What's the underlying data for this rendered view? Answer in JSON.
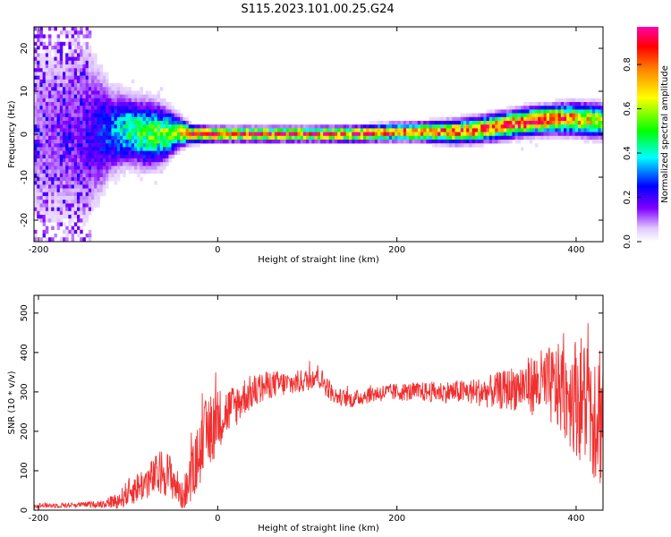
{
  "title": "S115.2023.101.00.25.G24",
  "chart_data": [
    {
      "type": "heatmap",
      "xlabel": "Height of straight line (km)",
      "ylabel": "Frequency (Hz)",
      "xlim": [
        -205,
        430
      ],
      "ylim": [
        -25,
        25
      ],
      "xticks": [
        -200,
        0,
        200,
        400
      ],
      "yticks": [
        -20,
        -10,
        0,
        10,
        20
      ],
      "colorbar": {
        "label": "Normalized spectral amplitude",
        "range": [
          0,
          0.97
        ],
        "ticks": [
          "0.0",
          "0.2",
          "0.4",
          "0.6",
          "0.8"
        ],
        "tick_values": [
          0,
          0.2,
          0.4,
          0.6,
          0.8
        ],
        "colors": [
          "#ffffff",
          "#8000ff",
          "#0000ff",
          "#00ffff",
          "#00ff00",
          "#ffff00",
          "#ff8000",
          "#ff0000",
          "#ff00aa"
        ]
      },
      "ridge": {
        "x": [
          -200,
          -150,
          -120,
          -100,
          -80,
          -60,
          -45,
          -30,
          0,
          50,
          100,
          150,
          200,
          230,
          260,
          290,
          320,
          350,
          380,
          400,
          430
        ],
        "freq": [
          0,
          0,
          0.5,
          1,
          0,
          0,
          0.5,
          0,
          0,
          0,
          0,
          0,
          0.5,
          0.5,
          0.5,
          1,
          2,
          3,
          3.5,
          3.5,
          3
        ],
        "peak": [
          0.1,
          0.15,
          0.3,
          0.45,
          0.5,
          0.55,
          0.6,
          0.9,
          0.92,
          0.92,
          0.9,
          0.85,
          0.8,
          0.85,
          0.8,
          0.8,
          0.85,
          0.9,
          0.85,
          0.75,
          0.6
        ],
        "spread": [
          18,
          18,
          8,
          6,
          6,
          5,
          3,
          1.5,
          1.2,
          1.2,
          1.2,
          1.3,
          1.5,
          1.6,
          2,
          2.2,
          2.3,
          2.4,
          2.5,
          2.8,
          3
        ]
      },
      "colorscale": "rainbow"
    },
    {
      "type": "line",
      "xlabel": "Height of straight line (km)",
      "ylabel": "SNR (10 * v/v)",
      "xlim": [
        -205,
        430
      ],
      "ylim": [
        0,
        545
      ],
      "xticks": [
        -200,
        0,
        200,
        400
      ],
      "yticks": [
        0,
        100,
        200,
        300,
        400,
        500
      ],
      "color": "#f03030",
      "series": [
        {
          "x": [
            -205,
            -180,
            -150,
            -130,
            -110,
            -100,
            -80,
            -60,
            -50,
            -40,
            -30,
            -20,
            -10,
            0,
            10,
            20,
            30,
            40,
            60,
            80,
            100,
            110,
            120,
            130,
            150,
            170,
            200,
            220,
            250,
            280,
            300,
            320,
            340,
            360,
            380,
            400,
            415,
            430
          ],
          "y": [
            12,
            12,
            14,
            16,
            25,
            45,
            70,
            100,
            80,
            35,
            75,
            150,
            200,
            230,
            250,
            265,
            290,
            300,
            320,
            320,
            330,
            345,
            320,
            290,
            280,
            295,
            300,
            300,
            300,
            300,
            300,
            305,
            315,
            320,
            310,
            290,
            270,
            250
          ],
          "noise": [
            4,
            4,
            4,
            6,
            14,
            22,
            28,
            38,
            35,
            22,
            40,
            55,
            65,
            50,
            40,
            35,
            30,
            28,
            22,
            20,
            18,
            20,
            18,
            14,
            13,
            14,
            14,
            15,
            17,
            20,
            25,
            32,
            40,
            55,
            70,
            95,
            115,
            130
          ]
        }
      ]
    }
  ]
}
